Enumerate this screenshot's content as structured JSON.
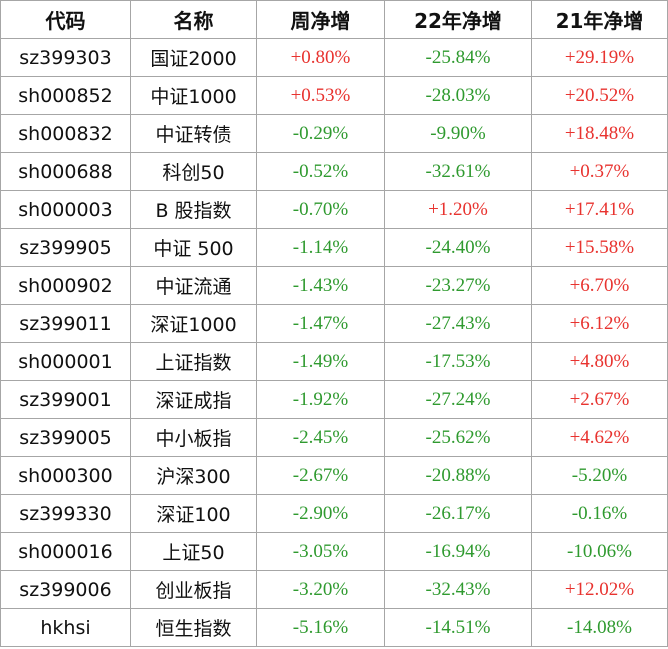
{
  "table": {
    "header": [
      "代码",
      "名称",
      "周净增",
      "22年净增",
      "21年净增"
    ],
    "rows": [
      [
        "sz399303",
        "国证2000",
        "+0.80%",
        "-25.84%",
        "+29.19%"
      ],
      [
        "sh000852",
        "中证1000",
        "+0.53%",
        "-28.03%",
        "+20.52%"
      ],
      [
        "sh000832",
        "中证转债",
        "-0.29%",
        "-9.90%",
        "+18.48%"
      ],
      [
        "sh000688",
        "科创50",
        "-0.52%",
        "-32.61%",
        "+0.37%"
      ],
      [
        "sh000003",
        "B 股指数",
        "-0.70%",
        "+1.20%",
        "+17.41%"
      ],
      [
        "sz399905",
        "中证 500",
        "-1.14%",
        "-24.40%",
        "+15.58%"
      ],
      [
        "sh000902",
        "中证流通",
        "-1.43%",
        "-23.27%",
        "+6.70%"
      ],
      [
        "sz399011",
        "深证1000",
        "-1.47%",
        "-27.43%",
        "+6.12%"
      ],
      [
        "sh000001",
        "上证指数",
        "-1.49%",
        "-17.53%",
        "+4.80%"
      ],
      [
        "sz399001",
        "深证成指",
        "-1.92%",
        "-27.24%",
        "+2.67%"
      ],
      [
        "sz399005",
        "中小板指",
        "-2.45%",
        "-25.62%",
        "+4.62%"
      ],
      [
        "sh000300",
        "沪深300",
        "-2.67%",
        "-20.88%",
        "-5.20%"
      ],
      [
        "sz399330",
        "深证100",
        "-2.90%",
        "-26.17%",
        "-0.16%"
      ],
      [
        "sh000016",
        "上证50",
        "-3.05%",
        "-16.94%",
        "-10.06%"
      ],
      [
        "sz399006",
        "创业板指",
        "-3.20%",
        "-32.43%",
        "+12.02%"
      ],
      [
        "hkhsi",
        "恒生指数",
        "-5.16%",
        "-14.51%",
        "-14.08%"
      ]
    ]
  }
}
